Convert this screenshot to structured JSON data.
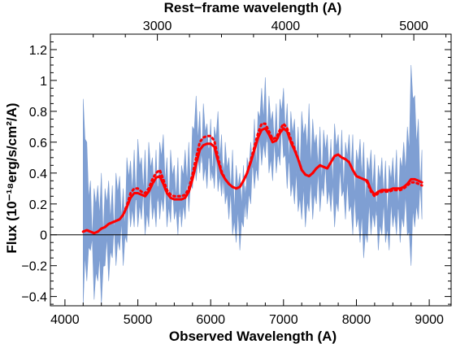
{
  "chart_data": {
    "type": "line",
    "title": "",
    "xlabel": "Observed Wavelength (A)",
    "x2label": "Rest−frame wavelength (A)",
    "ylabel": "Flux (10⁻¹⁸erg/s/cm²/A)",
    "xlim": [
      3800,
      9300
    ],
    "ylim": [
      -0.46,
      1.3
    ],
    "x_ticks": [
      4000,
      5000,
      6000,
      7000,
      8000,
      9000
    ],
    "y_ticks": [
      -0.4,
      -0.2,
      0,
      0.2,
      0.4,
      0.6,
      0.8,
      1,
      1.2
    ],
    "y_tick_labels": [
      "−0.4",
      "−0.2",
      "0",
      "0.2",
      "0.4",
      "0.6",
      "0.8",
      "1",
      "1.2"
    ],
    "x2_ticks": [
      3000,
      4000,
      5000
    ],
    "zero_line": true,
    "legend": "none",
    "grid": false,
    "series": [
      {
        "style": "noisy-fill",
        "color": "#7f9fd3",
        "x": [
          4250,
          4300,
          4350,
          4400,
          4450,
          4500,
          4550,
          4600,
          4650,
          4700,
          4750,
          4800,
          4850,
          4900,
          4950,
          5000,
          5050,
          5100,
          5150,
          5200,
          5250,
          5300,
          5350,
          5400,
          5450,
          5500,
          5550,
          5600,
          5650,
          5700,
          5750,
          5800,
          5850,
          5900,
          5950,
          6000,
          6050,
          6100,
          6150,
          6200,
          6250,
          6300,
          6350,
          6400,
          6450,
          6500,
          6550,
          6600,
          6650,
          6700,
          6750,
          6800,
          6850,
          6900,
          6950,
          7000,
          7050,
          7100,
          7150,
          7200,
          7250,
          7300,
          7350,
          7400,
          7450,
          7500,
          7550,
          7600,
          7650,
          7700,
          7750,
          7800,
          7850,
          7900,
          7950,
          8000,
          8050,
          8100,
          8150,
          8200,
          8250,
          8300,
          8350,
          8400,
          8450,
          8500,
          8550,
          8600,
          8650,
          8700,
          8750,
          8800,
          8850,
          8900
        ],
        "upper": [
          0.88,
          0.6,
          0.35,
          0.3,
          0.32,
          0.4,
          0.3,
          0.35,
          0.32,
          0.4,
          0.38,
          0.3,
          0.5,
          0.48,
          0.55,
          0.62,
          0.5,
          0.55,
          0.6,
          0.5,
          0.55,
          0.6,
          0.65,
          0.5,
          0.55,
          0.45,
          0.5,
          0.45,
          0.55,
          0.6,
          0.7,
          0.9,
          0.8,
          0.85,
          0.72,
          0.75,
          0.7,
          0.8,
          0.65,
          0.6,
          0.5,
          0.55,
          0.45,
          0.4,
          0.45,
          0.5,
          0.6,
          0.75,
          0.8,
          0.95,
          1.02,
          0.9,
          0.8,
          0.85,
          0.88,
          0.95,
          0.85,
          0.8,
          0.75,
          0.7,
          0.8,
          0.72,
          0.85,
          0.75,
          0.65,
          0.7,
          0.68,
          0.65,
          0.62,
          0.72,
          0.65,
          0.68,
          0.6,
          0.65,
          0.65,
          0.55,
          0.62,
          0.6,
          0.5,
          0.55,
          0.52,
          0.45,
          0.5,
          0.48,
          0.45,
          0.5,
          0.55,
          0.5,
          0.6,
          0.7,
          1.1,
          0.9,
          0.75,
          0.55
        ],
        "lower": [
          -0.45,
          -0.3,
          -0.1,
          -0.42,
          -0.3,
          -0.45,
          -0.2,
          -0.3,
          -0.15,
          -0.2,
          -0.1,
          -0.2,
          -0.05,
          0.05,
          0.05,
          0.05,
          0.1,
          0.0,
          0.05,
          0.1,
          0.05,
          0.1,
          0.15,
          0.05,
          0.08,
          0.1,
          0.0,
          0.05,
          0.1,
          0.15,
          0.3,
          0.35,
          0.4,
          0.35,
          0.3,
          0.35,
          0.3,
          0.28,
          0.25,
          0.2,
          0.1,
          0.0,
          -0.05,
          -0.1,
          0.05,
          0.1,
          0.2,
          0.3,
          0.35,
          0.45,
          0.5,
          0.4,
          0.35,
          0.4,
          0.45,
          0.5,
          0.3,
          0.25,
          0.2,
          0.15,
          0.1,
          0.05,
          0.15,
          0.1,
          0.2,
          0.15,
          0.25,
          0.2,
          0.15,
          0.05,
          0.15,
          0.25,
          0.1,
          0.15,
          0.0,
          0.05,
          -0.05,
          -0.15,
          -0.05,
          0.0,
          0.05,
          -0.1,
          0.0,
          -0.05,
          -0.1,
          0.05,
          0.0,
          -0.05,
          0.05,
          0.0,
          -0.2,
          0.05,
          0.1,
          0.1
        ]
      },
      {
        "style": "solid",
        "color": "#ff0000",
        "x": [
          4250,
          4300,
          4350,
          4400,
          4450,
          4500,
          4550,
          4600,
          4650,
          4700,
          4750,
          4800,
          4850,
          4900,
          4950,
          5000,
          5050,
          5100,
          5150,
          5200,
          5250,
          5300,
          5350,
          5400,
          5450,
          5500,
          5550,
          5600,
          5650,
          5700,
          5750,
          5800,
          5850,
          5900,
          5950,
          6000,
          6050,
          6100,
          6150,
          6200,
          6250,
          6300,
          6350,
          6400,
          6450,
          6500,
          6550,
          6600,
          6650,
          6700,
          6750,
          6800,
          6850,
          6900,
          6950,
          7000,
          7050,
          7100,
          7150,
          7200,
          7250,
          7300,
          7350,
          7400,
          7450,
          7500,
          7550,
          7600,
          7650,
          7700,
          7750,
          7800,
          7850,
          7900,
          7950,
          8000,
          8050,
          8100,
          8150,
          8200,
          8250,
          8300,
          8350,
          8400,
          8450,
          8500,
          8550,
          8600,
          8650,
          8700,
          8750,
          8800,
          8850,
          8900
        ],
        "y": [
          0.02,
          0.03,
          0.02,
          0.01,
          0.02,
          0.04,
          0.05,
          0.07,
          0.08,
          0.09,
          0.1,
          0.13,
          0.18,
          0.24,
          0.27,
          0.27,
          0.26,
          0.25,
          0.28,
          0.33,
          0.37,
          0.38,
          0.33,
          0.27,
          0.24,
          0.23,
          0.23,
          0.23,
          0.24,
          0.28,
          0.36,
          0.46,
          0.55,
          0.58,
          0.59,
          0.59,
          0.57,
          0.48,
          0.4,
          0.36,
          0.33,
          0.31,
          0.3,
          0.31,
          0.35,
          0.4,
          0.47,
          0.55,
          0.63,
          0.68,
          0.69,
          0.65,
          0.6,
          0.61,
          0.66,
          0.69,
          0.67,
          0.6,
          0.55,
          0.49,
          0.42,
          0.39,
          0.38,
          0.4,
          0.43,
          0.45,
          0.44,
          0.43,
          0.47,
          0.51,
          0.52,
          0.5,
          0.49,
          0.47,
          0.42,
          0.38,
          0.37,
          0.36,
          0.35,
          0.29,
          0.26,
          0.28,
          0.29,
          0.29,
          0.29,
          0.3,
          0.3,
          0.3,
          0.31,
          0.33,
          0.36,
          0.36,
          0.35,
          0.34
        ]
      },
      {
        "style": "dotted",
        "color": "#ff0000",
        "x": [
          4250,
          4300,
          4350,
          4400,
          4450,
          4500,
          4550,
          4600,
          4650,
          4700,
          4750,
          4800,
          4850,
          4900,
          4950,
          5000,
          5050,
          5100,
          5150,
          5200,
          5250,
          5300,
          5350,
          5400,
          5450,
          5500,
          5550,
          5600,
          5650,
          5700,
          5750,
          5800,
          5850,
          5900,
          5950,
          6000,
          6050,
          6100,
          6150,
          6200,
          6250,
          6300,
          6350,
          6400,
          6450,
          6500,
          6550,
          6600,
          6650,
          6700,
          6750,
          6800,
          6850,
          6900,
          6950,
          7000,
          7050,
          7100,
          7150,
          7200,
          7250,
          7300,
          7350,
          7400,
          7450,
          7500,
          7550,
          7600,
          7650,
          7700,
          7750,
          7800,
          7850,
          7900,
          7950,
          8000,
          8050,
          8100,
          8150,
          8200,
          8250,
          8300,
          8350,
          8400,
          8450,
          8500,
          8550,
          8600,
          8650,
          8700,
          8750,
          8800,
          8850,
          8900
        ],
        "y": [
          0.02,
          0.03,
          0.02,
          0.01,
          0.02,
          0.04,
          0.05,
          0.07,
          0.08,
          0.09,
          0.1,
          0.13,
          0.19,
          0.27,
          0.3,
          0.3,
          0.28,
          0.27,
          0.3,
          0.36,
          0.4,
          0.42,
          0.36,
          0.29,
          0.26,
          0.25,
          0.25,
          0.25,
          0.26,
          0.3,
          0.39,
          0.5,
          0.6,
          0.63,
          0.64,
          0.64,
          0.61,
          0.5,
          0.41,
          0.36,
          0.33,
          0.31,
          0.3,
          0.31,
          0.35,
          0.4,
          0.48,
          0.57,
          0.66,
          0.72,
          0.72,
          0.67,
          0.62,
          0.63,
          0.68,
          0.72,
          0.69,
          0.62,
          0.56,
          0.49,
          0.42,
          0.39,
          0.38,
          0.4,
          0.43,
          0.45,
          0.44,
          0.43,
          0.47,
          0.51,
          0.52,
          0.5,
          0.49,
          0.47,
          0.42,
          0.38,
          0.37,
          0.36,
          0.34,
          0.28,
          0.25,
          0.27,
          0.28,
          0.28,
          0.28,
          0.29,
          0.29,
          0.29,
          0.3,
          0.32,
          0.34,
          0.34,
          0.33,
          0.32
        ]
      }
    ]
  }
}
